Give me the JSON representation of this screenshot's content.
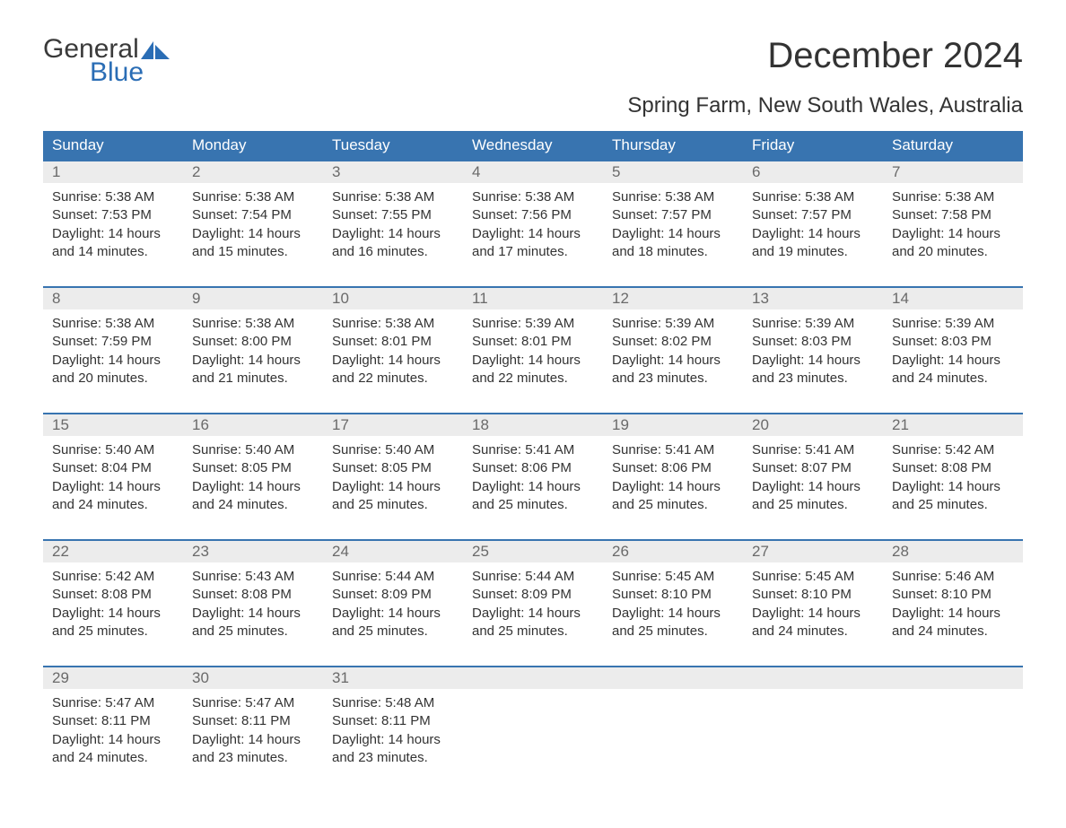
{
  "logo": {
    "top": "General",
    "bottom": "Blue",
    "sail_color": "#2a6db5"
  },
  "title": "December 2024",
  "subtitle": "Spring Farm, New South Wales, Australia",
  "colors": {
    "header_bg": "#3874b0",
    "header_text": "#ffffff",
    "daynum_bg": "#ececec",
    "daynum_text": "#6a6a6a",
    "body_text": "#333333",
    "rule": "#3874b0"
  },
  "day_headers": [
    "Sunday",
    "Monday",
    "Tuesday",
    "Wednesday",
    "Thursday",
    "Friday",
    "Saturday"
  ],
  "weeks": [
    [
      {
        "n": "1",
        "sunrise": "5:38 AM",
        "sunset": "7:53 PM",
        "daylight": "14 hours and 14 minutes."
      },
      {
        "n": "2",
        "sunrise": "5:38 AM",
        "sunset": "7:54 PM",
        "daylight": "14 hours and 15 minutes."
      },
      {
        "n": "3",
        "sunrise": "5:38 AM",
        "sunset": "7:55 PM",
        "daylight": "14 hours and 16 minutes."
      },
      {
        "n": "4",
        "sunrise": "5:38 AM",
        "sunset": "7:56 PM",
        "daylight": "14 hours and 17 minutes."
      },
      {
        "n": "5",
        "sunrise": "5:38 AM",
        "sunset": "7:57 PM",
        "daylight": "14 hours and 18 minutes."
      },
      {
        "n": "6",
        "sunrise": "5:38 AM",
        "sunset": "7:57 PM",
        "daylight": "14 hours and 19 minutes."
      },
      {
        "n": "7",
        "sunrise": "5:38 AM",
        "sunset": "7:58 PM",
        "daylight": "14 hours and 20 minutes."
      }
    ],
    [
      {
        "n": "8",
        "sunrise": "5:38 AM",
        "sunset": "7:59 PM",
        "daylight": "14 hours and 20 minutes."
      },
      {
        "n": "9",
        "sunrise": "5:38 AM",
        "sunset": "8:00 PM",
        "daylight": "14 hours and 21 minutes."
      },
      {
        "n": "10",
        "sunrise": "5:38 AM",
        "sunset": "8:01 PM",
        "daylight": "14 hours and 22 minutes."
      },
      {
        "n": "11",
        "sunrise": "5:39 AM",
        "sunset": "8:01 PM",
        "daylight": "14 hours and 22 minutes."
      },
      {
        "n": "12",
        "sunrise": "5:39 AM",
        "sunset": "8:02 PM",
        "daylight": "14 hours and 23 minutes."
      },
      {
        "n": "13",
        "sunrise": "5:39 AM",
        "sunset": "8:03 PM",
        "daylight": "14 hours and 23 minutes."
      },
      {
        "n": "14",
        "sunrise": "5:39 AM",
        "sunset": "8:03 PM",
        "daylight": "14 hours and 24 minutes."
      }
    ],
    [
      {
        "n": "15",
        "sunrise": "5:40 AM",
        "sunset": "8:04 PM",
        "daylight": "14 hours and 24 minutes."
      },
      {
        "n": "16",
        "sunrise": "5:40 AM",
        "sunset": "8:05 PM",
        "daylight": "14 hours and 24 minutes."
      },
      {
        "n": "17",
        "sunrise": "5:40 AM",
        "sunset": "8:05 PM",
        "daylight": "14 hours and 25 minutes."
      },
      {
        "n": "18",
        "sunrise": "5:41 AM",
        "sunset": "8:06 PM",
        "daylight": "14 hours and 25 minutes."
      },
      {
        "n": "19",
        "sunrise": "5:41 AM",
        "sunset": "8:06 PM",
        "daylight": "14 hours and 25 minutes."
      },
      {
        "n": "20",
        "sunrise": "5:41 AM",
        "sunset": "8:07 PM",
        "daylight": "14 hours and 25 minutes."
      },
      {
        "n": "21",
        "sunrise": "5:42 AM",
        "sunset": "8:08 PM",
        "daylight": "14 hours and 25 minutes."
      }
    ],
    [
      {
        "n": "22",
        "sunrise": "5:42 AM",
        "sunset": "8:08 PM",
        "daylight": "14 hours and 25 minutes."
      },
      {
        "n": "23",
        "sunrise": "5:43 AM",
        "sunset": "8:08 PM",
        "daylight": "14 hours and 25 minutes."
      },
      {
        "n": "24",
        "sunrise": "5:44 AM",
        "sunset": "8:09 PM",
        "daylight": "14 hours and 25 minutes."
      },
      {
        "n": "25",
        "sunrise": "5:44 AM",
        "sunset": "8:09 PM",
        "daylight": "14 hours and 25 minutes."
      },
      {
        "n": "26",
        "sunrise": "5:45 AM",
        "sunset": "8:10 PM",
        "daylight": "14 hours and 25 minutes."
      },
      {
        "n": "27",
        "sunrise": "5:45 AM",
        "sunset": "8:10 PM",
        "daylight": "14 hours and 24 minutes."
      },
      {
        "n": "28",
        "sunrise": "5:46 AM",
        "sunset": "8:10 PM",
        "daylight": "14 hours and 24 minutes."
      }
    ],
    [
      {
        "n": "29",
        "sunrise": "5:47 AM",
        "sunset": "8:11 PM",
        "daylight": "14 hours and 24 minutes."
      },
      {
        "n": "30",
        "sunrise": "5:47 AM",
        "sunset": "8:11 PM",
        "daylight": "14 hours and 23 minutes."
      },
      {
        "n": "31",
        "sunrise": "5:48 AM",
        "sunset": "8:11 PM",
        "daylight": "14 hours and 23 minutes."
      },
      null,
      null,
      null,
      null
    ]
  ],
  "labels": {
    "sunrise": "Sunrise:",
    "sunset": "Sunset:",
    "daylight": "Daylight:"
  }
}
